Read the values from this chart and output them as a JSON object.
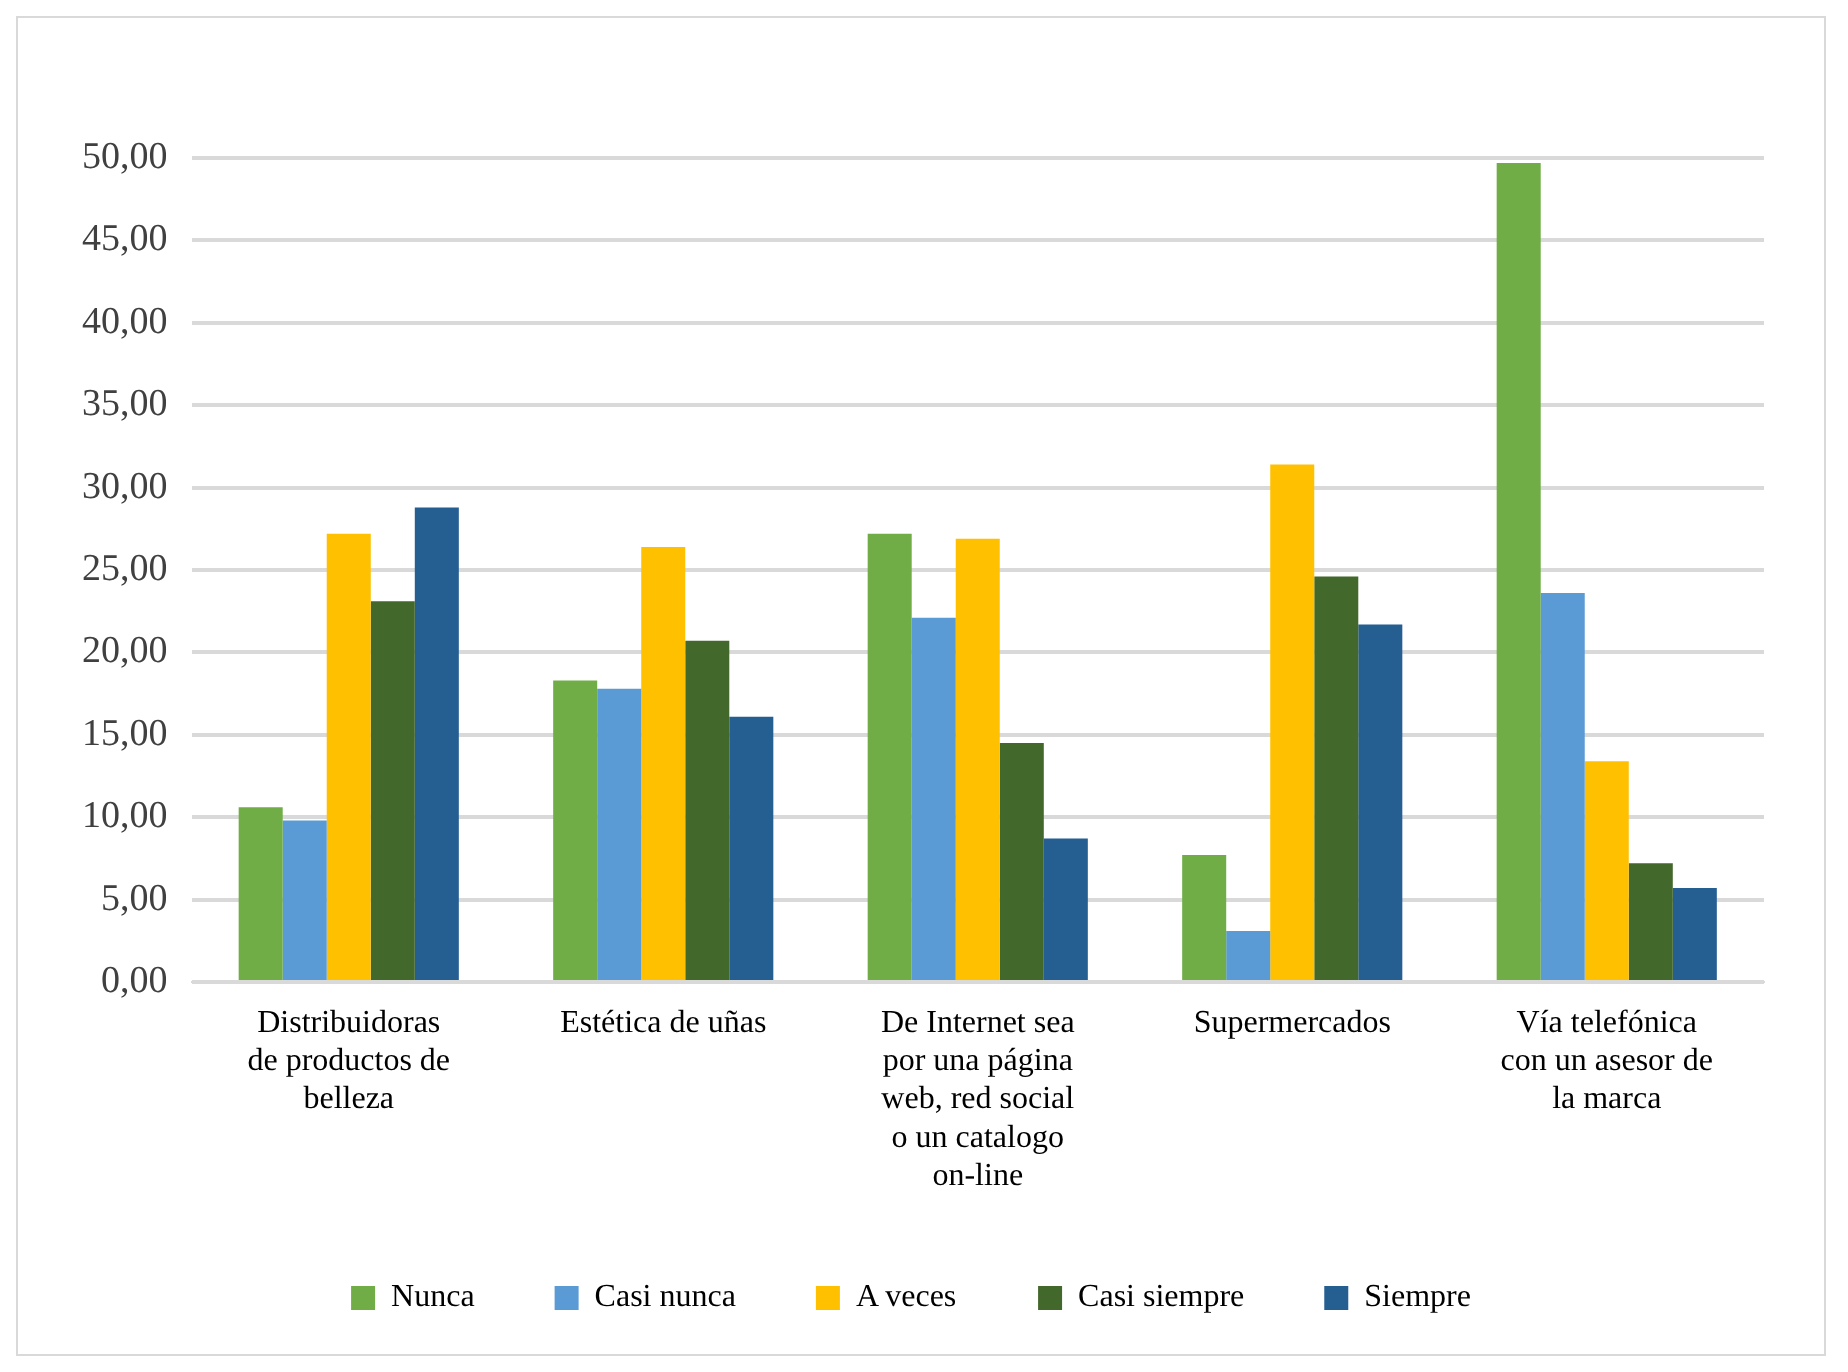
{
  "chart_data": {
    "type": "bar",
    "categories": [
      "Distribuidoras de productos de belleza",
      "Estética de uñas",
      "De Internet sea por una página web, red social o un catalogo on-line",
      "Supermercados",
      "Vía telefónica con un asesor de la marca"
    ],
    "series": [
      {
        "name": "Nunca",
        "color": "#70ad47",
        "values": [
          10.6,
          18.3,
          27.2,
          7.7,
          49.7
        ]
      },
      {
        "name": "Casi nunca",
        "color": "#5b9bd5",
        "values": [
          9.8,
          17.8,
          22.1,
          3.1,
          23.6
        ]
      },
      {
        "name": "A veces",
        "color": "#ffc000",
        "values": [
          27.2,
          26.4,
          26.9,
          31.4,
          13.4
        ]
      },
      {
        "name": "Casi siempre",
        "color": "#43682b",
        "values": [
          23.1,
          20.7,
          14.5,
          24.6,
          7.2
        ]
      },
      {
        "name": "Siempre",
        "color": "#255e91",
        "values": [
          28.8,
          16.1,
          8.7,
          21.7,
          5.7
        ]
      }
    ],
    "ylim": [
      0,
      50
    ],
    "yticks": [
      {
        "value": 0,
        "label": "0,00"
      },
      {
        "value": 5,
        "label": "5,00"
      },
      {
        "value": 10,
        "label": "10,00"
      },
      {
        "value": 15,
        "label": "15,00"
      },
      {
        "value": 20,
        "label": "20,00"
      },
      {
        "value": 25,
        "label": "25,00"
      },
      {
        "value": 30,
        "label": "30,00"
      },
      {
        "value": 35,
        "label": "35,00"
      },
      {
        "value": 40,
        "label": "40,00"
      },
      {
        "value": 45,
        "label": "45,00"
      },
      {
        "value": 50,
        "label": "50,00"
      }
    ],
    "grid": "y",
    "legend": "bottom"
  }
}
